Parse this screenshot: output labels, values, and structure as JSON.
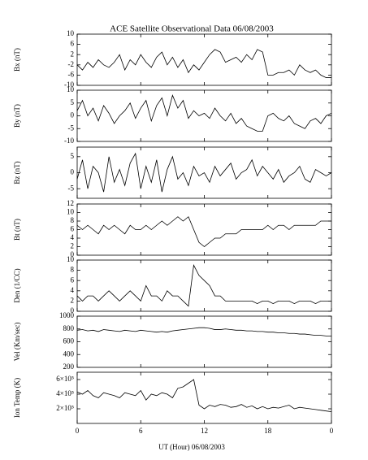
{
  "title": "ACE Satellite Observational Data   06/08/2003",
  "xlabel": "UT (Hour)   06/08/2003",
  "xlim": [
    0,
    24
  ],
  "xticks": [
    0,
    6,
    12,
    18,
    {
      "value": 24,
      "label": "0"
    }
  ],
  "x": [
    0,
    0.5,
    1,
    1.5,
    2,
    2.5,
    3,
    3.5,
    4,
    4.5,
    5,
    5.5,
    6,
    6.5,
    7,
    7.5,
    8,
    8.5,
    9,
    9.5,
    10,
    10.5,
    11,
    11.5,
    12,
    12.5,
    13,
    13.5,
    14,
    14.5,
    15,
    15.5,
    16,
    16.5,
    17,
    17.5,
    18,
    18.5,
    19,
    19.5,
    20,
    20.5,
    21,
    21.5,
    22,
    22.5,
    23,
    23.5,
    24
  ],
  "chart_data": [
    {
      "type": "line",
      "ylabel": "Bx (nT)",
      "ylim": [
        -10,
        10
      ],
      "yticks": [
        -10,
        -6,
        -2,
        2,
        6,
        10
      ],
      "color": "#000000",
      "values": [
        -2,
        -4,
        -1,
        -3,
        0,
        -2,
        -3,
        -1,
        2,
        -4,
        0,
        -2,
        2,
        -1,
        -3,
        1,
        3,
        -2,
        1,
        -3,
        0,
        -5,
        -2,
        -4,
        -1,
        2,
        4,
        3,
        -1,
        0,
        1,
        -1,
        2,
        0,
        4,
        3,
        -6,
        -6,
        -5,
        -5,
        -4,
        -6,
        -2,
        -4,
        -5,
        -4,
        -6,
        -7,
        -7
      ]
    },
    {
      "type": "line",
      "ylabel": "By (nT)",
      "ylim": [
        -10,
        10
      ],
      "yticks": [
        -10,
        -5,
        0,
        5,
        10
      ],
      "color": "#000000",
      "values": [
        2,
        6,
        0,
        3,
        -2,
        4,
        1,
        -3,
        0,
        2,
        5,
        -1,
        3,
        6,
        -2,
        4,
        7,
        0,
        8,
        3,
        6,
        -1,
        2,
        0,
        1,
        -1,
        3,
        0,
        -2,
        1,
        -3,
        -1,
        -4,
        -5,
        -6,
        -6,
        0,
        1,
        -1,
        -2,
        0,
        -3,
        -4,
        -5,
        -2,
        -1,
        -3,
        0,
        1
      ]
    },
    {
      "type": "line",
      "ylabel": "Bz (nT)",
      "ylim": [
        -8,
        8
      ],
      "yticks": [
        -5,
        0,
        5
      ],
      "color": "#000000",
      "values": [
        -2,
        4,
        -5,
        2,
        0,
        -6,
        5,
        -3,
        1,
        -4,
        3,
        6,
        -5,
        2,
        -3,
        4,
        -6,
        1,
        5,
        -2,
        0,
        -4,
        2,
        -1,
        0,
        -3,
        2,
        -1,
        1,
        3,
        -2,
        0,
        1,
        4,
        -1,
        2,
        0,
        -2,
        1,
        -3,
        -1,
        0,
        2,
        -2,
        -3,
        1,
        0,
        -1,
        0
      ]
    },
    {
      "type": "line",
      "ylabel": "Bt (nT)",
      "ylim": [
        0,
        12
      ],
      "yticks": [
        0,
        2,
        4,
        6,
        8,
        10,
        12
      ],
      "color": "#000000",
      "values": [
        7,
        6,
        7,
        6,
        5,
        7,
        6,
        7,
        6,
        5,
        7,
        6,
        6,
        7,
        6,
        7,
        8,
        7,
        8,
        9,
        8,
        9,
        6,
        3,
        2,
        3,
        4,
        4,
        5,
        5,
        5,
        6,
        6,
        6,
        6,
        6,
        7,
        6,
        7,
        7,
        6,
        7,
        7,
        7,
        7,
        7,
        8,
        8,
        8
      ]
    },
    {
      "type": "line",
      "ylabel": "Den (1/CC)",
      "ylim": [
        0,
        10
      ],
      "yticks": [
        0,
        2,
        4,
        6,
        8,
        10
      ],
      "color": "#000000",
      "values": [
        3,
        2,
        3,
        3,
        2,
        3,
        4,
        3,
        2,
        3,
        4,
        3,
        2,
        5,
        3,
        3,
        2,
        4,
        3,
        3,
        2,
        1,
        9,
        7,
        6,
        5,
        3,
        3,
        2,
        2,
        2,
        2,
        2,
        2,
        1.5,
        2,
        2,
        1.5,
        2,
        2,
        2,
        1.5,
        2,
        2,
        2,
        1.5,
        2,
        2,
        2
      ]
    },
    {
      "type": "line",
      "ylabel": "Vel (Km/sec)",
      "ylim": [
        200,
        1000
      ],
      "yticks": [
        200,
        400,
        600,
        800,
        1000
      ],
      "color": "#000000",
      "values": [
        780,
        790,
        770,
        780,
        760,
        790,
        780,
        770,
        760,
        780,
        770,
        760,
        780,
        770,
        760,
        750,
        760,
        750,
        770,
        780,
        790,
        800,
        810,
        820,
        820,
        810,
        790,
        790,
        800,
        790,
        780,
        780,
        770,
        770,
        760,
        760,
        750,
        750,
        740,
        740,
        730,
        730,
        720,
        720,
        710,
        700,
        700,
        690,
        690
      ]
    },
    {
      "type": "line",
      "ylabel": "Ion Temp (K)",
      "ylim": [
        0,
        700000
      ],
      "yticks": [
        {
          "value": 200000,
          "label": "2×10⁵"
        },
        {
          "value": 400000,
          "label": "4×10⁵"
        },
        {
          "value": 600000,
          "label": "6×10⁵"
        }
      ],
      "color": "#000000",
      "values": [
        430000,
        400000,
        450000,
        380000,
        350000,
        420000,
        400000,
        380000,
        350000,
        420000,
        400000,
        380000,
        450000,
        320000,
        400000,
        380000,
        420000,
        400000,
        350000,
        480000,
        500000,
        550000,
        600000,
        250000,
        200000,
        250000,
        230000,
        260000,
        250000,
        220000,
        230000,
        260000,
        220000,
        240000,
        200000,
        230000,
        200000,
        220000,
        210000,
        230000,
        250000,
        200000,
        220000,
        210000,
        200000,
        190000,
        180000,
        170000,
        160000
      ]
    }
  ]
}
